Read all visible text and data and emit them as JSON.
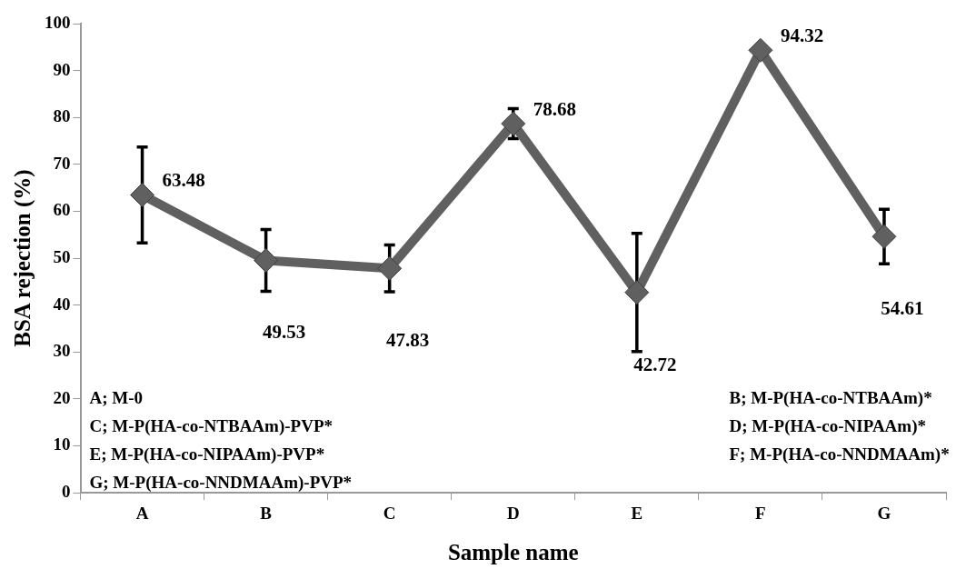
{
  "chart_data": {
    "type": "line",
    "xlabel": "Sample name",
    "ylabel": "BSA rejection (%)",
    "categories": [
      "A",
      "B",
      "C",
      "D",
      "E",
      "F",
      "G"
    ],
    "series": [
      {
        "color": "#606060",
        "values": [
          63.48,
          49.53,
          47.83,
          78.68,
          42.72,
          94.32,
          54.61
        ],
        "errors": [
          10.2,
          6.6,
          5,
          3.2,
          12.6,
          null,
          5.8
        ]
      }
    ],
    "ylim": [
      0,
      100
    ],
    "yticks": [
      0,
      10,
      20,
      30,
      40,
      50,
      60,
      70,
      80,
      90,
      100
    ],
    "grid": false,
    "legend": false,
    "marker": "diamond",
    "line_style": "solid",
    "data_labels": true,
    "annotations": [
      "A; M-0",
      "B; M-P(HA-co-NTBAAm)*",
      "C; M-P(HA-co-NTBAAm)-PVP*",
      "D; M-P(HA-co-NIPAAm)*",
      "E; M-P(HA-co-NIPAAm)-PVP*",
      "F; M-P(HA-co-NNDMAAm)*",
      "G; M-P(HA-co-NNDMAAm)-PVP*"
    ]
  }
}
